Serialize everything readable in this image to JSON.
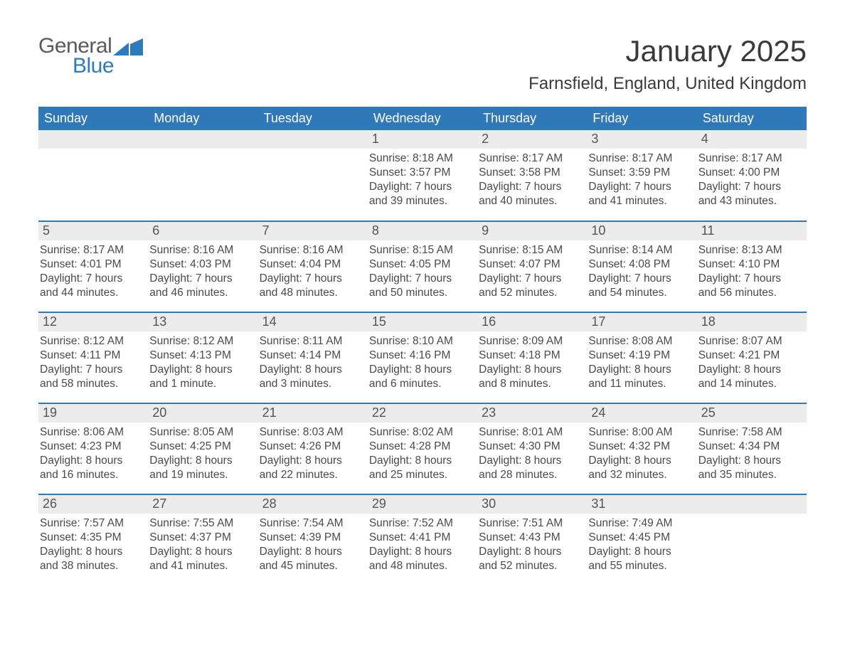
{
  "brand": {
    "word1": "General",
    "word2": "Blue"
  },
  "header": {
    "month_title": "January 2025",
    "location": "Farnsfield, England, United Kingdom"
  },
  "colors": {
    "header_bg": "#3079b9",
    "header_text": "#ffffff",
    "daynum_bg": "#ececec",
    "body_text": "#4a4a4a",
    "rule": "#3079b9",
    "logo_blue": "#2b7bbd",
    "logo_gray": "#5a5a5a"
  },
  "daynames": [
    "Sunday",
    "Monday",
    "Tuesday",
    "Wednesday",
    "Thursday",
    "Friday",
    "Saturday"
  ],
  "weeks": [
    [
      {
        "n": "",
        "sr": "",
        "ss": "",
        "dl": ""
      },
      {
        "n": "",
        "sr": "",
        "ss": "",
        "dl": ""
      },
      {
        "n": "",
        "sr": "",
        "ss": "",
        "dl": ""
      },
      {
        "n": "1",
        "sr": "Sunrise: 8:18 AM",
        "ss": "Sunset: 3:57 PM",
        "dl": "Daylight: 7 hours and 39 minutes."
      },
      {
        "n": "2",
        "sr": "Sunrise: 8:17 AM",
        "ss": "Sunset: 3:58 PM",
        "dl": "Daylight: 7 hours and 40 minutes."
      },
      {
        "n": "3",
        "sr": "Sunrise: 8:17 AM",
        "ss": "Sunset: 3:59 PM",
        "dl": "Daylight: 7 hours and 41 minutes."
      },
      {
        "n": "4",
        "sr": "Sunrise: 8:17 AM",
        "ss": "Sunset: 4:00 PM",
        "dl": "Daylight: 7 hours and 43 minutes."
      }
    ],
    [
      {
        "n": "5",
        "sr": "Sunrise: 8:17 AM",
        "ss": "Sunset: 4:01 PM",
        "dl": "Daylight: 7 hours and 44 minutes."
      },
      {
        "n": "6",
        "sr": "Sunrise: 8:16 AM",
        "ss": "Sunset: 4:03 PM",
        "dl": "Daylight: 7 hours and 46 minutes."
      },
      {
        "n": "7",
        "sr": "Sunrise: 8:16 AM",
        "ss": "Sunset: 4:04 PM",
        "dl": "Daylight: 7 hours and 48 minutes."
      },
      {
        "n": "8",
        "sr": "Sunrise: 8:15 AM",
        "ss": "Sunset: 4:05 PM",
        "dl": "Daylight: 7 hours and 50 minutes."
      },
      {
        "n": "9",
        "sr": "Sunrise: 8:15 AM",
        "ss": "Sunset: 4:07 PM",
        "dl": "Daylight: 7 hours and 52 minutes."
      },
      {
        "n": "10",
        "sr": "Sunrise: 8:14 AM",
        "ss": "Sunset: 4:08 PM",
        "dl": "Daylight: 7 hours and 54 minutes."
      },
      {
        "n": "11",
        "sr": "Sunrise: 8:13 AM",
        "ss": "Sunset: 4:10 PM",
        "dl": "Daylight: 7 hours and 56 minutes."
      }
    ],
    [
      {
        "n": "12",
        "sr": "Sunrise: 8:12 AM",
        "ss": "Sunset: 4:11 PM",
        "dl": "Daylight: 7 hours and 58 minutes."
      },
      {
        "n": "13",
        "sr": "Sunrise: 8:12 AM",
        "ss": "Sunset: 4:13 PM",
        "dl": "Daylight: 8 hours and 1 minute."
      },
      {
        "n": "14",
        "sr": "Sunrise: 8:11 AM",
        "ss": "Sunset: 4:14 PM",
        "dl": "Daylight: 8 hours and 3 minutes."
      },
      {
        "n": "15",
        "sr": "Sunrise: 8:10 AM",
        "ss": "Sunset: 4:16 PM",
        "dl": "Daylight: 8 hours and 6 minutes."
      },
      {
        "n": "16",
        "sr": "Sunrise: 8:09 AM",
        "ss": "Sunset: 4:18 PM",
        "dl": "Daylight: 8 hours and 8 minutes."
      },
      {
        "n": "17",
        "sr": "Sunrise: 8:08 AM",
        "ss": "Sunset: 4:19 PM",
        "dl": "Daylight: 8 hours and 11 minutes."
      },
      {
        "n": "18",
        "sr": "Sunrise: 8:07 AM",
        "ss": "Sunset: 4:21 PM",
        "dl": "Daylight: 8 hours and 14 minutes."
      }
    ],
    [
      {
        "n": "19",
        "sr": "Sunrise: 8:06 AM",
        "ss": "Sunset: 4:23 PM",
        "dl": "Daylight: 8 hours and 16 minutes."
      },
      {
        "n": "20",
        "sr": "Sunrise: 8:05 AM",
        "ss": "Sunset: 4:25 PM",
        "dl": "Daylight: 8 hours and 19 minutes."
      },
      {
        "n": "21",
        "sr": "Sunrise: 8:03 AM",
        "ss": "Sunset: 4:26 PM",
        "dl": "Daylight: 8 hours and 22 minutes."
      },
      {
        "n": "22",
        "sr": "Sunrise: 8:02 AM",
        "ss": "Sunset: 4:28 PM",
        "dl": "Daylight: 8 hours and 25 minutes."
      },
      {
        "n": "23",
        "sr": "Sunrise: 8:01 AM",
        "ss": "Sunset: 4:30 PM",
        "dl": "Daylight: 8 hours and 28 minutes."
      },
      {
        "n": "24",
        "sr": "Sunrise: 8:00 AM",
        "ss": "Sunset: 4:32 PM",
        "dl": "Daylight: 8 hours and 32 minutes."
      },
      {
        "n": "25",
        "sr": "Sunrise: 7:58 AM",
        "ss": "Sunset: 4:34 PM",
        "dl": "Daylight: 8 hours and 35 minutes."
      }
    ],
    [
      {
        "n": "26",
        "sr": "Sunrise: 7:57 AM",
        "ss": "Sunset: 4:35 PM",
        "dl": "Daylight: 8 hours and 38 minutes."
      },
      {
        "n": "27",
        "sr": "Sunrise: 7:55 AM",
        "ss": "Sunset: 4:37 PM",
        "dl": "Daylight: 8 hours and 41 minutes."
      },
      {
        "n": "28",
        "sr": "Sunrise: 7:54 AM",
        "ss": "Sunset: 4:39 PM",
        "dl": "Daylight: 8 hours and 45 minutes."
      },
      {
        "n": "29",
        "sr": "Sunrise: 7:52 AM",
        "ss": "Sunset: 4:41 PM",
        "dl": "Daylight: 8 hours and 48 minutes."
      },
      {
        "n": "30",
        "sr": "Sunrise: 7:51 AM",
        "ss": "Sunset: 4:43 PM",
        "dl": "Daylight: 8 hours and 52 minutes."
      },
      {
        "n": "31",
        "sr": "Sunrise: 7:49 AM",
        "ss": "Sunset: 4:45 PM",
        "dl": "Daylight: 8 hours and 55 minutes."
      },
      {
        "n": "",
        "sr": "",
        "ss": "",
        "dl": ""
      }
    ]
  ]
}
